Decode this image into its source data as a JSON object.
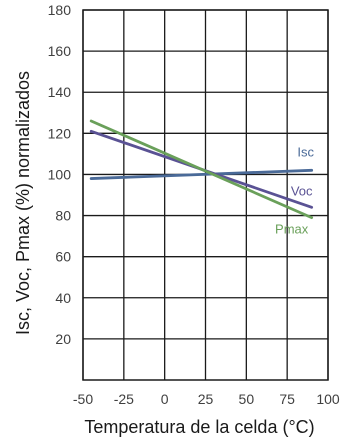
{
  "chart_data": {
    "type": "line",
    "title": "",
    "xlabel": "Temperatura de la celda (°C)",
    "ylabel": "Isc, Voc, Pmax (%) normalizados",
    "xlim": [
      -50,
      100
    ],
    "ylim": [
      0,
      180
    ],
    "x_ticks": [
      -50,
      -25,
      0,
      25,
      50,
      75,
      100
    ],
    "x_tick_labels": [
      "-50",
      "-25",
      "0",
      "25",
      "50",
      "75",
      "100"
    ],
    "y_ticks": [
      20,
      40,
      60,
      80,
      100,
      120,
      140,
      160,
      180
    ],
    "y_tick_labels": [
      "20",
      "40",
      "60",
      "80",
      "100",
      "120",
      "140",
      "160",
      "180"
    ],
    "grid": true,
    "series": [
      {
        "name": "Isc",
        "color": "#4a6a98",
        "x": [
          -45,
          90
        ],
        "y": [
          98,
          102
        ]
      },
      {
        "name": "Voc",
        "color": "#5a5294",
        "x": [
          -45,
          90
        ],
        "y": [
          121,
          84
        ]
      },
      {
        "name": "Pmax",
        "color": "#6aa05a",
        "x": [
          -45,
          90
        ],
        "y": [
          126,
          79
        ]
      }
    ]
  }
}
